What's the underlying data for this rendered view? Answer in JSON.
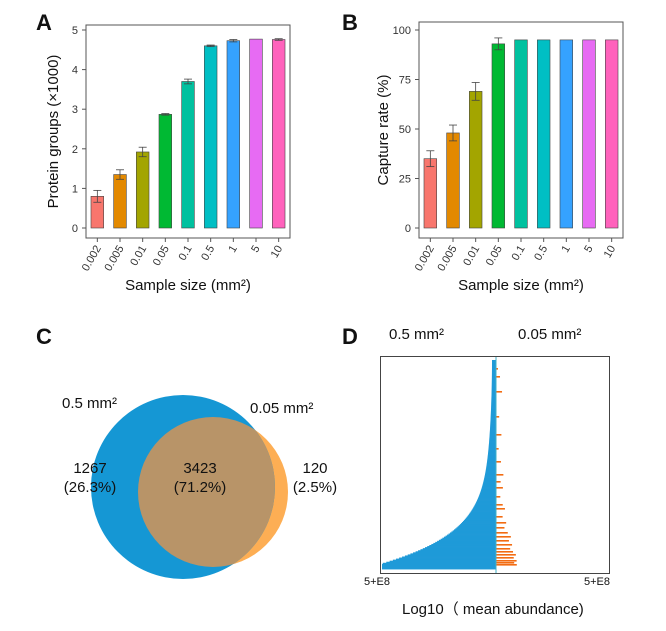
{
  "panels": {
    "a": {
      "letter": "A",
      "chart_data": {
        "type": "bar",
        "title": "",
        "xlabel": "Sample size (mm²)",
        "ylabel": "Protein groups (×1000)",
        "ylim": [
          0,
          5
        ],
        "yticks": [
          "0",
          "1",
          "2",
          "3",
          "4",
          "5"
        ],
        "categories": [
          "0.002",
          "0.005",
          "0.01",
          "0.05",
          "0.1",
          "0.5",
          "1",
          "5",
          "10"
        ],
        "values": [
          0.8,
          1.35,
          1.92,
          2.87,
          3.7,
          4.6,
          4.73,
          4.77,
          4.76
        ],
        "errors": [
          0.15,
          0.12,
          0.12,
          0.02,
          0.06,
          0.02,
          0.03,
          0.0,
          0.02
        ],
        "colors": [
          "#f8766d",
          "#e38900",
          "#a3a500",
          "#00b933",
          "#00c19f",
          "#00bfc4",
          "#35a2ff",
          "#e76bf3",
          "#ff62bc"
        ]
      }
    },
    "b": {
      "letter": "B",
      "chart_data": {
        "type": "bar",
        "title": "",
        "xlabel": "Sample size (mm²)",
        "ylabel": "Capture rate (%)",
        "ylim": [
          0,
          100
        ],
        "yticks": [
          "0",
          "25",
          "50",
          "75",
          "100"
        ],
        "categories": [
          "0.002",
          "0.005",
          "0.01",
          "0.05",
          "0.1",
          "0.5",
          "1",
          "5",
          "10"
        ],
        "values": [
          35,
          48,
          69,
          93,
          95,
          95,
          95,
          95,
          95
        ],
        "errors": [
          4,
          4,
          4.5,
          3,
          0,
          0,
          0,
          0,
          0
        ],
        "colors": [
          "#f8766d",
          "#e38900",
          "#a3a500",
          "#00b933",
          "#00c19f",
          "#00bfc4",
          "#35a2ff",
          "#e76bf3",
          "#ff62bc"
        ]
      }
    },
    "c": {
      "letter": "C",
      "left_label": "0.5 mm²",
      "right_label": "0.05 mm²",
      "left_only": "1267",
      "left_only_pct": "(26.3%)",
      "overlap": "3423",
      "overlap_pct": "(71.2%)",
      "right_only": "120",
      "right_only_pct": "(2.5%)",
      "left_color": "#1597d4",
      "right_color": "#fdae54",
      "overlap_color": "#b89468"
    },
    "d": {
      "letter": "D",
      "left_label": "0.5 mm²",
      "right_label": "0.05 mm²",
      "xlabel": "Log10（ mean abundance)",
      "left_tick": "5+E8",
      "right_tick": "5+E8",
      "left_color": "#1f9ad8",
      "right_color": "#f26c12",
      "chart_data": {
        "type": "bar",
        "orientation": "horizontal-mirrored",
        "series": [
          {
            "name": "0.5 mm²",
            "description": "sorted protein abundance profile, log-like tail extending left"
          },
          {
            "name": "0.05 mm²",
            "description": "sparse short bars on right side"
          }
        ]
      }
    }
  }
}
